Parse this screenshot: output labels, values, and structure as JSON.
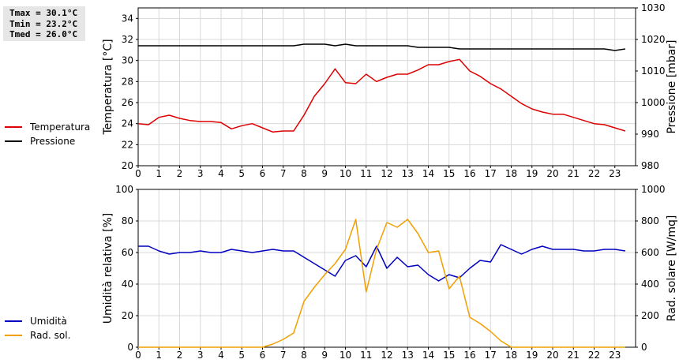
{
  "stats": {
    "tmax": "Tmax = 30.1°C",
    "tmin": "Tmin = 23.2°C",
    "tmed": "Tmed = 26.0°C"
  },
  "legend_top": [
    {
      "label": "Temperatura",
      "color": "#dd0000"
    },
    {
      "label": "Pressione",
      "color": "#000000"
    }
  ],
  "legend_bottom": [
    {
      "label": "Umidità",
      "color": "#0000c0"
    },
    {
      "label": "Rad. sol.",
      "color": "#f0a000"
    }
  ],
  "chart_data": [
    {
      "type": "line",
      "x_ticks": [
        "0",
        "1",
        "2",
        "3",
        "4",
        "5",
        "6",
        "7",
        "8",
        "9",
        "10",
        "11",
        "12",
        "13",
        "14",
        "15",
        "16",
        "17",
        "18",
        "19",
        "20",
        "21",
        "22",
        "23"
      ],
      "xlim": [
        0,
        24
      ],
      "ylabel": "Temperatura [°C]",
      "ylim": [
        20,
        35
      ],
      "y_ticks": [
        "20",
        "22",
        "24",
        "26",
        "28",
        "30",
        "32",
        "34"
      ],
      "y2label": "Pressione [mbar]",
      "y2lim": [
        980,
        1030
      ],
      "y2_ticks": [
        "980",
        "990",
        "1000",
        "1010",
        "1020",
        "1030"
      ],
      "grid": true,
      "series": [
        {
          "name": "Temperatura",
          "axis": "left",
          "color": "#dd0000",
          "x": [
            0,
            0.5,
            1,
            1.5,
            2,
            2.5,
            3,
            3.5,
            4,
            4.5,
            5,
            5.5,
            6,
            6.5,
            7,
            7.5,
            8,
            8.5,
            9,
            9.5,
            10,
            10.5,
            11,
            11.5,
            12,
            12.5,
            13,
            13.5,
            14,
            14.5,
            15,
            15.5,
            16,
            16.5,
            17,
            17.5,
            18,
            18.5,
            19,
            19.5,
            20,
            20.5,
            21,
            21.5,
            22,
            22.5,
            23,
            23.5
          ],
          "values": [
            24.0,
            23.9,
            24.6,
            24.8,
            24.5,
            24.3,
            24.2,
            24.2,
            24.1,
            23.5,
            23.8,
            24.0,
            23.6,
            23.2,
            23.3,
            23.3,
            24.8,
            26.6,
            27.8,
            29.2,
            27.9,
            27.8,
            28.7,
            28.0,
            28.4,
            28.7,
            28.7,
            29.1,
            29.6,
            29.6,
            29.9,
            30.1,
            29.0,
            28.5,
            27.8,
            27.3,
            26.6,
            25.9,
            25.4,
            25.1,
            24.9,
            24.9,
            24.6,
            24.3,
            24.0,
            23.9,
            23.6,
            23.3
          ]
        },
        {
          "name": "Pressione",
          "axis": "right",
          "color": "#000000",
          "x": [
            0,
            1,
            2,
            3,
            4,
            5,
            6,
            7,
            7.5,
            8,
            8.5,
            9,
            9.5,
            10,
            10.5,
            11,
            12,
            13,
            13.5,
            14,
            15,
            15.5,
            16,
            17,
            18,
            19,
            20,
            21,
            22,
            22.5,
            23,
            23.5
          ],
          "values": [
            1018,
            1018,
            1018,
            1018,
            1018,
            1018,
            1018,
            1018,
            1018,
            1018.5,
            1018.5,
            1018.5,
            1018,
            1018.5,
            1018,
            1018,
            1018,
            1018,
            1017.5,
            1017.5,
            1017.5,
            1017,
            1017,
            1017,
            1017,
            1017,
            1017,
            1017,
            1017,
            1017,
            1016.5,
            1017
          ]
        }
      ]
    },
    {
      "type": "line",
      "x_ticks": [
        "0",
        "1",
        "2",
        "3",
        "4",
        "5",
        "6",
        "7",
        "8",
        "9",
        "10",
        "11",
        "12",
        "13",
        "14",
        "15",
        "16",
        "17",
        "18",
        "19",
        "20",
        "21",
        "22",
        "23"
      ],
      "xlim": [
        0,
        24
      ],
      "ylabel": "Umidità relativa [%]",
      "ylim": [
        0,
        100
      ],
      "y_ticks": [
        "0",
        "20",
        "40",
        "60",
        "80",
        "100"
      ],
      "y2label": "Rad. solare [W/mq]",
      "y2lim": [
        0,
        1000
      ],
      "y2_ticks": [
        "0",
        "200",
        "400",
        "600",
        "800",
        "1000"
      ],
      "grid": true,
      "series": [
        {
          "name": "Umidità",
          "axis": "left",
          "color": "#0000c0",
          "x": [
            0,
            0.5,
            1,
            1.5,
            2,
            2.5,
            3,
            3.5,
            4,
            4.5,
            5,
            5.5,
            6,
            6.5,
            7,
            7.5,
            8,
            8.5,
            9,
            9.5,
            10,
            10.5,
            11,
            11.5,
            12,
            12.5,
            13,
            13.5,
            14,
            14.5,
            15,
            15.5,
            16,
            16.5,
            17,
            17.5,
            18,
            18.5,
            19,
            19.5,
            20,
            20.5,
            21,
            21.5,
            22,
            22.5,
            23,
            23.5
          ],
          "values": [
            64,
            64,
            61,
            59,
            60,
            60,
            61,
            60,
            60,
            62,
            61,
            60,
            61,
            62,
            61,
            61,
            57,
            53,
            49,
            45,
            55,
            58,
            51,
            64,
            50,
            57,
            51,
            52,
            46,
            42,
            46,
            44,
            50,
            55,
            54,
            65,
            62,
            59,
            62,
            64,
            62,
            62,
            62,
            61,
            61,
            62,
            62,
            61
          ]
        },
        {
          "name": "Rad. sol.",
          "axis": "right",
          "color": "#f0a000",
          "x": [
            0,
            0.5,
            1,
            1.5,
            2,
            2.5,
            3,
            3.5,
            4,
            4.5,
            5,
            5.5,
            6,
            6.5,
            7,
            7.5,
            8,
            8.5,
            9,
            9.5,
            10,
            10.5,
            11,
            11.5,
            12,
            12.5,
            13,
            13.5,
            14,
            14.5,
            15,
            15.5,
            16,
            16.5,
            17,
            17.5,
            18,
            18.5,
            19,
            19.5,
            20,
            20.5,
            21,
            21.5,
            22,
            22.5,
            23,
            23.5
          ],
          "values": [
            0,
            0,
            0,
            0,
            0,
            0,
            0,
            0,
            0,
            0,
            0,
            0,
            0,
            20,
            50,
            90,
            290,
            380,
            460,
            530,
            620,
            810,
            350,
            620,
            790,
            760,
            810,
            720,
            600,
            610,
            370,
            450,
            190,
            150,
            100,
            40,
            0,
            0,
            0,
            0,
            0,
            0,
            0,
            0,
            0,
            0,
            0,
            0
          ]
        }
      ]
    }
  ]
}
